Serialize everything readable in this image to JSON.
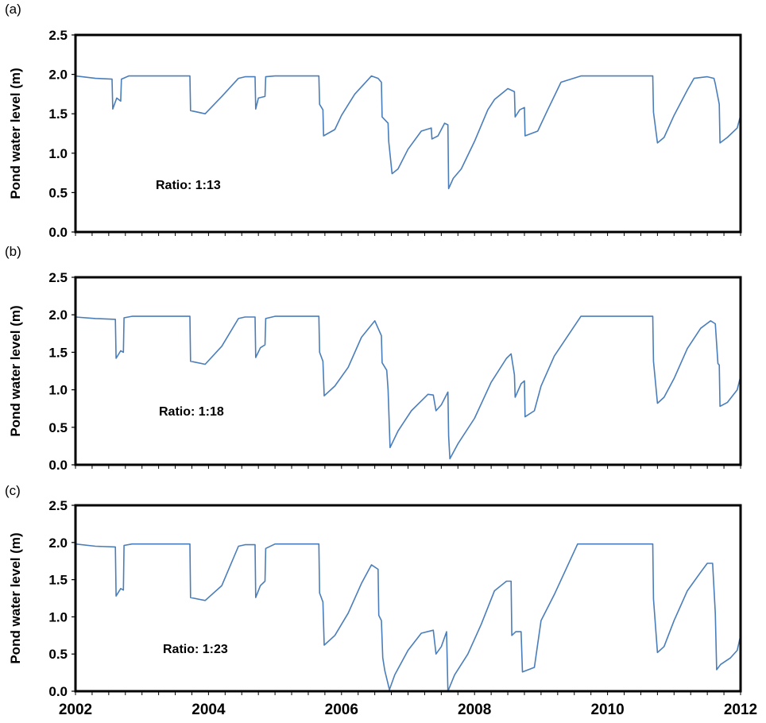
{
  "chart_data": [
    {
      "type": "line",
      "panel_label": "(a)",
      "ylabel": "Pond  water level (m)",
      "annotation": "Ratio:  1:13",
      "ylim": [
        0,
        2.5
      ],
      "yticks": [
        "0.0",
        "0.5",
        "1.0",
        "1.5",
        "2.0",
        "2.5"
      ],
      "xlim": [
        2002,
        2012
      ],
      "grid": false,
      "line_color": "#4a7ebb",
      "series": [
        {
          "x": [
            2002.0,
            2002.3,
            2002.55,
            2002.56,
            2002.62,
            2002.68,
            2002.69,
            2002.8,
            2003.72,
            2003.73,
            2003.95,
            2004.2,
            2004.45,
            2004.55,
            2004.7,
            2004.71,
            2004.75,
            2004.85,
            2004.86,
            2005.0,
            2005.66,
            2005.67,
            2005.72,
            2005.73,
            2005.9,
            2006.0,
            2006.2,
            2006.45,
            2006.55,
            2006.6,
            2006.61,
            2006.7,
            2006.71,
            2006.76,
            2006.85,
            2007.0,
            2007.2,
            2007.35,
            2007.36,
            2007.45,
            2007.55,
            2007.6,
            2007.61,
            2007.68,
            2007.8,
            2008.0,
            2008.2,
            2008.3,
            2008.5,
            2008.6,
            2008.61,
            2008.68,
            2008.75,
            2008.76,
            2008.95,
            2009.1,
            2009.3,
            2009.6,
            2010.0,
            2010.68,
            2010.69,
            2010.75,
            2010.85,
            2011.0,
            2011.2,
            2011.3,
            2011.5,
            2011.6,
            2011.62,
            2011.68,
            2011.69,
            2011.8,
            2011.95,
            2012.0
          ],
          "y": [
            1.98,
            1.95,
            1.94,
            1.56,
            1.7,
            1.66,
            1.94,
            1.98,
            1.98,
            1.54,
            1.5,
            1.72,
            1.95,
            1.97,
            1.97,
            1.56,
            1.7,
            1.72,
            1.97,
            1.98,
            1.98,
            1.62,
            1.55,
            1.22,
            1.3,
            1.48,
            1.75,
            1.98,
            1.95,
            1.9,
            1.46,
            1.38,
            1.15,
            0.74,
            0.8,
            1.05,
            1.28,
            1.32,
            1.18,
            1.22,
            1.38,
            1.36,
            0.55,
            0.68,
            0.8,
            1.15,
            1.55,
            1.68,
            1.82,
            1.78,
            1.46,
            1.55,
            1.58,
            1.22,
            1.28,
            1.55,
            1.9,
            1.98,
            1.98,
            1.98,
            1.52,
            1.13,
            1.2,
            1.48,
            1.8,
            1.95,
            1.97,
            1.95,
            1.88,
            1.62,
            1.13,
            1.2,
            1.32,
            1.48
          ]
        }
      ]
    },
    {
      "type": "line",
      "panel_label": "(b)",
      "ylabel": "Pond  water level (m)",
      "annotation": "Ratio:  1:18",
      "ylim": [
        0,
        2.5
      ],
      "yticks": [
        "0.0",
        "0.5",
        "1.0",
        "1.5",
        "2.0",
        "2.5"
      ],
      "xlim": [
        2002,
        2012
      ],
      "grid": false,
      "line_color": "#4a7ebb",
      "series": [
        {
          "x": [
            2002.0,
            2002.3,
            2002.6,
            2002.61,
            2002.68,
            2002.72,
            2002.73,
            2002.85,
            2003.72,
            2003.73,
            2003.95,
            2004.2,
            2004.45,
            2004.55,
            2004.7,
            2004.71,
            2004.78,
            2004.85,
            2004.86,
            2005.0,
            2005.66,
            2005.67,
            2005.72,
            2005.74,
            2005.9,
            2006.1,
            2006.3,
            2006.5,
            2006.6,
            2006.61,
            2006.68,
            2006.7,
            2006.73,
            2006.85,
            2007.05,
            2007.3,
            2007.38,
            2007.42,
            2007.5,
            2007.6,
            2007.61,
            2007.63,
            2007.75,
            2008.0,
            2008.25,
            2008.48,
            2008.55,
            2008.6,
            2008.61,
            2008.7,
            2008.75,
            2008.76,
            2008.9,
            2009.0,
            2009.2,
            2009.6,
            2010.0,
            2010.68,
            2010.69,
            2010.75,
            2010.85,
            2011.0,
            2011.2,
            2011.4,
            2011.55,
            2011.62,
            2011.66,
            2011.68,
            2011.69,
            2011.8,
            2011.95,
            2012.0
          ],
          "y": [
            1.97,
            1.95,
            1.94,
            1.42,
            1.52,
            1.5,
            1.96,
            1.98,
            1.98,
            1.38,
            1.34,
            1.58,
            1.95,
            1.97,
            1.97,
            1.43,
            1.56,
            1.6,
            1.95,
            1.98,
            1.98,
            1.5,
            1.38,
            0.92,
            1.05,
            1.3,
            1.7,
            1.92,
            1.72,
            1.36,
            1.26,
            1.0,
            0.23,
            0.45,
            0.72,
            0.94,
            0.93,
            0.72,
            0.8,
            0.97,
            0.38,
            0.08,
            0.28,
            0.62,
            1.1,
            1.42,
            1.48,
            1.2,
            0.9,
            1.08,
            1.12,
            0.64,
            0.72,
            1.05,
            1.45,
            1.98,
            1.98,
            1.98,
            1.38,
            0.82,
            0.9,
            1.15,
            1.55,
            1.82,
            1.92,
            1.88,
            1.35,
            1.33,
            0.78,
            0.83,
            1.0,
            1.18
          ]
        }
      ]
    },
    {
      "type": "line",
      "panel_label": "(c)",
      "ylabel": "Pond  water level (m)",
      "annotation": "Ratio:  1:23",
      "ylim": [
        0,
        2.5
      ],
      "yticks": [
        "0.0",
        "0.5",
        "1.0",
        "1.5",
        "2.0",
        "2.5"
      ],
      "xlim": [
        2002,
        2012
      ],
      "grid": false,
      "line_color": "#4a7ebb",
      "series": [
        {
          "x": [
            2002.0,
            2002.3,
            2002.6,
            2002.61,
            2002.68,
            2002.72,
            2002.73,
            2002.85,
            2003.72,
            2003.73,
            2003.95,
            2004.2,
            2004.45,
            2004.55,
            2004.7,
            2004.71,
            2004.78,
            2004.85,
            2004.86,
            2005.0,
            2005.66,
            2005.67,
            2005.72,
            2005.74,
            2005.9,
            2006.1,
            2006.3,
            2006.45,
            2006.55,
            2006.56,
            2006.6,
            2006.62,
            2006.65,
            2006.72,
            2006.8,
            2007.0,
            2007.2,
            2007.38,
            2007.42,
            2007.5,
            2007.58,
            2007.6,
            2007.7,
            2007.9,
            2008.1,
            2008.3,
            2008.48,
            2008.55,
            2008.56,
            2008.62,
            2008.7,
            2008.72,
            2008.9,
            2009.0,
            2009.2,
            2009.55,
            2010.0,
            2010.68,
            2010.69,
            2010.75,
            2010.85,
            2011.0,
            2011.2,
            2011.4,
            2011.5,
            2011.58,
            2011.62,
            2011.64,
            2011.7,
            2011.85,
            2011.95,
            2012.0
          ],
          "y": [
            1.98,
            1.95,
            1.94,
            1.28,
            1.38,
            1.36,
            1.96,
            1.98,
            1.98,
            1.26,
            1.22,
            1.42,
            1.95,
            1.97,
            1.97,
            1.26,
            1.42,
            1.48,
            1.92,
            1.98,
            1.98,
            1.32,
            1.2,
            0.62,
            0.75,
            1.05,
            1.45,
            1.7,
            1.64,
            1.02,
            0.95,
            0.45,
            0.28,
            0.02,
            0.22,
            0.55,
            0.78,
            0.82,
            0.5,
            0.6,
            0.8,
            0.0,
            0.22,
            0.5,
            0.9,
            1.35,
            1.48,
            1.48,
            0.75,
            0.8,
            0.8,
            0.26,
            0.32,
            0.95,
            1.3,
            1.98,
            1.98,
            1.98,
            1.24,
            0.52,
            0.6,
            0.95,
            1.35,
            1.6,
            1.72,
            1.72,
            1.05,
            0.29,
            0.36,
            0.45,
            0.55,
            0.75
          ]
        }
      ]
    }
  ],
  "x_tick_labels": [
    "2002",
    "2004",
    "2006",
    "2008",
    "2010",
    "2012"
  ]
}
